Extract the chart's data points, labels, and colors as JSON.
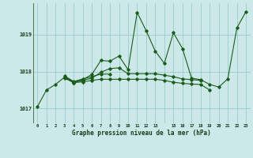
{
  "bg_color": "#cce8e8",
  "grid_color": "#99cccc",
  "line_color": "#1a5c1a",
  "ylim": [
    1016.6,
    1019.85
  ],
  "yticks": [
    1017,
    1018,
    1019
  ],
  "x_labels": [
    "0",
    "1",
    "2",
    "3",
    "4",
    "5",
    "6",
    "7",
    "8",
    "9",
    "10",
    "11",
    "12",
    "13",
    "",
    "15",
    "16",
    "17",
    "18",
    "19",
    "20",
    "21",
    "22",
    "23"
  ],
  "xlabel": "Graphe pression niveau de la mer (hPa)",
  "lines": [
    {
      "x": [
        0,
        1,
        2,
        3,
        4,
        5,
        6,
        7,
        8,
        9,
        10,
        11,
        12,
        13,
        14,
        15,
        16,
        17,
        18,
        19,
        20,
        21,
        22,
        23
      ],
      "y": [
        1017.05,
        1017.5,
        1017.65,
        1017.85,
        1017.72,
        1017.78,
        1017.92,
        1018.3,
        1018.28,
        1018.42,
        1018.05,
        1019.6,
        1019.1,
        1018.55,
        1018.22,
        1019.05,
        1018.62,
        1017.82,
        1017.78,
        1017.65,
        1017.58,
        1017.8,
        1019.18,
        1019.62
      ]
    },
    {
      "x": [
        3,
        4,
        5,
        6,
        7,
        8,
        9,
        10,
        11,
        12,
        13,
        14,
        15,
        16,
        17,
        18,
        19
      ],
      "y": [
        1017.82,
        1017.7,
        1017.72,
        1017.76,
        1017.79,
        1017.79,
        1017.79,
        1017.79,
        1017.79,
        1017.79,
        1017.79,
        1017.76,
        1017.71,
        1017.68,
        1017.66,
        1017.65,
        1017.5
      ]
    },
    {
      "x": [
        3,
        4,
        5,
        6,
        7,
        8,
        9,
        10,
        11,
        12,
        13,
        14,
        15,
        16,
        17,
        18
      ],
      "y": [
        1017.84,
        1017.7,
        1017.76,
        1017.82,
        1017.98,
        1018.08,
        1018.1,
        1017.94,
        1017.94,
        1017.94,
        1017.94,
        1017.9,
        1017.86,
        1017.8,
        1017.78,
        1017.76
      ]
    },
    {
      "x": [
        3,
        4,
        5,
        6,
        7,
        8
      ],
      "y": [
        1017.88,
        1017.73,
        1017.8,
        1017.86,
        1017.93,
        1017.93
      ]
    }
  ]
}
